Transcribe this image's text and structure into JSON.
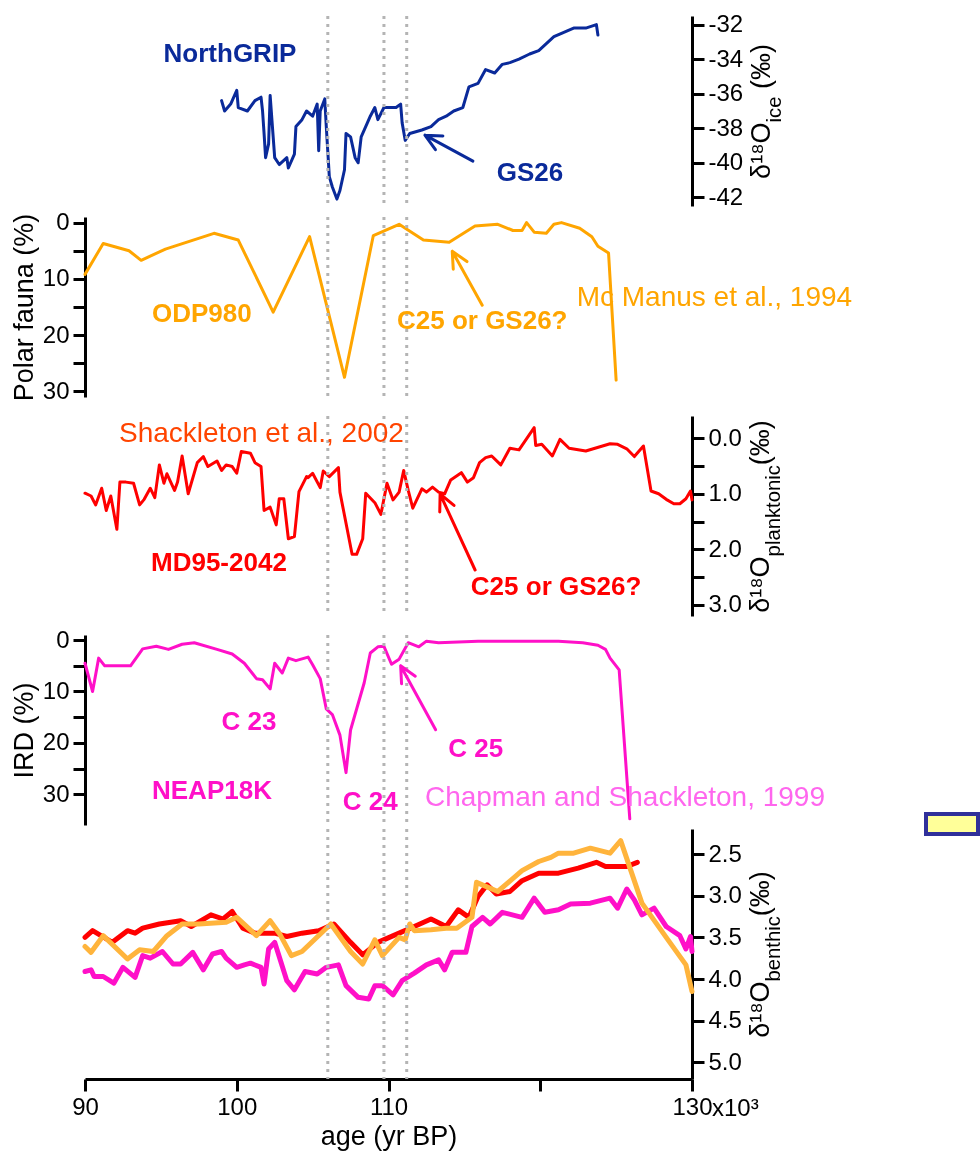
{
  "chart_data": [
    {
      "type": "line",
      "xlim": [
        90,
        130
      ],
      "y2lim": [
        -42.5,
        -31.5
      ],
      "y2ticks": [
        -32,
        -34,
        -36,
        -38,
        -40,
        -42
      ],
      "y2label": "δ¹⁸O$_{ice}$ (‰)",
      "tick_labels": "y",
      "series": [
        {
          "name": "NorthGRIP",
          "color": "#0a2a9a",
          "axis": "y2",
          "x": [
            99.0,
            99.2,
            99.6,
            100.0,
            100.1,
            100.7,
            101.2,
            101.6,
            101.7,
            101.8,
            101.9,
            102.1,
            102.2,
            102.4,
            102.5,
            102.8,
            103.3,
            103.4,
            103.8,
            103.9,
            104.3,
            104.6,
            105.0,
            105.3,
            105.4,
            105.5,
            105.8,
            105.9,
            106.1,
            106.3,
            106.6,
            106.8,
            107.1,
            107.2,
            107.5,
            107.8,
            108.0,
            108.2,
            108.6,
            108.8,
            109.1,
            109.3,
            109.7,
            110.1,
            110.5,
            110.8,
            110.9,
            111.1,
            111.4,
            112.2,
            112.8,
            113.3,
            113.8,
            114.3,
            114.9,
            115.3,
            115.9,
            116.4,
            117.0,
            117.5,
            118.0,
            118.6,
            119.3,
            119.9,
            120.4,
            120.9,
            121.4,
            122.2,
            123.0,
            123.7,
            123.8
          ],
          "values": [
            -36.4,
            -37.0,
            -36.6,
            -35.8,
            -36.8,
            -37.0,
            -36.4,
            -36.2,
            -37.0,
            -38.3,
            -39.7,
            -38.9,
            -36.1,
            -38.5,
            -39.7,
            -40.1,
            -39.7,
            -40.3,
            -39.5,
            -37.9,
            -37.5,
            -37.0,
            -37.3,
            -36.6,
            -39.3,
            -37.0,
            -36.3,
            -37.9,
            -40.8,
            -41.4,
            -42.1,
            -41.6,
            -40.4,
            -38.3,
            -38.5,
            -39.7,
            -40.0,
            -38.5,
            -37.7,
            -37.3,
            -36.8,
            -37.5,
            -36.8,
            -36.8,
            -36.8,
            -36.6,
            -37.7,
            -38.7,
            -38.3,
            -38.1,
            -37.9,
            -37.5,
            -37.3,
            -37.0,
            -36.8,
            -35.6,
            -35.4,
            -34.6,
            -34.8,
            -34.3,
            -34.2,
            -34.0,
            -33.7,
            -33.5,
            -33.1,
            -32.7,
            -32.5,
            -32.2,
            -32.2,
            -32.0,
            -32.6
          ]
        }
      ],
      "ref_lines": [
        {
          "axis": "x",
          "value": 106.0,
          "color": "#b4b4b4",
          "line_style": "dotted"
        },
        {
          "axis": "x",
          "value": 109.7,
          "color": "#b4b4b4",
          "line_style": "dotted"
        },
        {
          "axis": "x",
          "value": 111.2,
          "color": "#b4b4b4",
          "line_style": "dotted"
        }
      ],
      "annotations": [
        "GS26"
      ]
    },
    {
      "type": "line",
      "xlim": [
        90,
        130
      ],
      "ylim": [
        31,
        -1
      ],
      "yticks": [
        0,
        {
          "value": 5,
          "label": null
        },
        10,
        {
          "value": 15,
          "label": null
        },
        20,
        {
          "value": 25,
          "label": null
        },
        30
      ],
      "ylabel": "Polar fauna (%)",
      "tick_labels": "y",
      "series": [
        {
          "name": "ODP980",
          "color": "#ffa500",
          "x": [
            90.0,
            91.2,
            92.9,
            93.7,
            95.3,
            98.5,
            100.1,
            102.4,
            104.8,
            107.1,
            109.0,
            110.7,
            112.3,
            114.0,
            115.7,
            117.2,
            118.2,
            118.8,
            119.1,
            119.6,
            120.4,
            120.9,
            121.4,
            122.6,
            123.4,
            123.8,
            124.5,
            125.0
          ],
          "values": [
            9.2,
            3.7,
            5.0,
            6.7,
            4.7,
            1.9,
            3.1,
            15.9,
            2.5,
            27.5,
            2.3,
            0.3,
            3.1,
            3.5,
            0.6,
            0.3,
            1.4,
            1.4,
            0.0,
            1.7,
            1.9,
            0.3,
            0.0,
            1.0,
            2.5,
            4.2,
            5.4,
            28.0
          ]
        }
      ],
      "ref_lines": [
        {
          "axis": "x",
          "value": 106.0,
          "color": "#b4b4b4",
          "line_style": "dotted"
        },
        {
          "axis": "x",
          "value": 109.7,
          "color": "#b4b4b4",
          "line_style": "dotted"
        },
        {
          "axis": "x",
          "value": 111.2,
          "color": "#b4b4b4",
          "line_style": "dotted"
        }
      ],
      "annotations": [
        "C25 or GS26?",
        "Mc Manus et al., 1994"
      ]
    },
    {
      "type": "line",
      "xlim": [
        90,
        130
      ],
      "y2lim": [
        3.2,
        -0.4
      ],
      "y2ticks": [
        {
          "value": 0,
          "label": "0.0"
        },
        {
          "value": 0.5,
          "label": null
        },
        {
          "value": 1,
          "label": "1.0"
        },
        {
          "value": 1.5,
          "label": null
        },
        {
          "value": 2,
          "label": "2.0"
        },
        {
          "value": 2.5,
          "label": null
        },
        {
          "value": 3,
          "label": "3.0"
        }
      ],
      "y2label": "δ¹⁸O$_{planktonic}$(‰)",
      "tick_labels": "y",
      "series": [
        {
          "name": "MD95-2042",
          "color": "#ff0000",
          "axis": "y2",
          "x": [
            90.0,
            90.4,
            90.7,
            91.1,
            91.4,
            91.7,
            92.1,
            92.3,
            92.7,
            93.2,
            93.6,
            93.9,
            94.3,
            94.6,
            94.9,
            95.2,
            95.4,
            95.9,
            96.1,
            96.4,
            96.8,
            97.4,
            97.8,
            98.1,
            98.7,
            99.0,
            99.3,
            99.7,
            100.0,
            100.3,
            100.9,
            101.2,
            101.6,
            101.8,
            102.2,
            102.6,
            102.8,
            103.1,
            103.4,
            103.8,
            104.1,
            104.6,
            104.7,
            105.0,
            105.5,
            105.7,
            106.1,
            106.7,
            106.8,
            107.6,
            107.9,
            108.3,
            108.5,
            109.1,
            109.5,
            109.9,
            110.3,
            110.7,
            111.0,
            111.3,
            111.6,
            112.2,
            112.5,
            112.9,
            113.3,
            113.7,
            114.1,
            114.8,
            115.2,
            115.6,
            116.0,
            116.4,
            116.8,
            117.4,
            118.0,
            118.6,
            119.6,
            119.7,
            120.1,
            120.8,
            121.3,
            121.9,
            123.0,
            124.6,
            125.1,
            125.7,
            126.2,
            126.8,
            127.3,
            127.8,
            128.3,
            128.8,
            129.2,
            129.6,
            129.9,
            130.0
          ],
          "values": [
            0.99,
            1.04,
            1.2,
            0.9,
            1.3,
            1.04,
            1.64,
            0.79,
            0.79,
            0.81,
            1.2,
            1.1,
            0.9,
            1.07,
            0.48,
            0.81,
            0.64,
            0.94,
            0.79,
            0.32,
            1.0,
            0.44,
            0.33,
            0.51,
            0.41,
            0.58,
            0.48,
            0.51,
            0.63,
            0.24,
            0.27,
            0.44,
            0.51,
            1.3,
            1.24,
            1.56,
            1.09,
            1.09,
            1.81,
            1.77,
            0.96,
            0.69,
            0.71,
            0.63,
            0.89,
            0.59,
            0.69,
            0.53,
            0.97,
            2.09,
            2.09,
            1.81,
            0.99,
            1.16,
            1.37,
            0.81,
            1.11,
            0.97,
            0.58,
            0.94,
            1.26,
            0.91,
            0.97,
            0.88,
            0.97,
            1.0,
            0.75,
            0.62,
            0.79,
            0.71,
            0.44,
            0.35,
            0.32,
            0.48,
            0.18,
            0.21,
            -0.19,
            0.13,
            0.11,
            0.32,
            0.02,
            0.18,
            0.23,
            0.1,
            0.11,
            0.19,
            0.33,
            0.14,
            0.95,
            1.0,
            1.1,
            1.18,
            1.18,
            1.09,
            0.95,
            1.11
          ]
        }
      ],
      "ref_lines": [
        {
          "axis": "x",
          "value": 106.0,
          "color": "#b4b4b4",
          "line_style": "dotted"
        },
        {
          "axis": "x",
          "value": 109.7,
          "color": "#b4b4b4",
          "line_style": "dotted"
        },
        {
          "axis": "x",
          "value": 111.2,
          "color": "#b4b4b4",
          "line_style": "dotted"
        }
      ],
      "annotations": [
        "C25 or GS26?",
        "Shackleton et al., 2002"
      ]
    },
    {
      "type": "line",
      "xlim": [
        90,
        130
      ],
      "ylim": [
        36,
        -1
      ],
      "yticks": [
        0,
        {
          "value": 5,
          "label": null
        },
        10,
        {
          "value": 15,
          "label": null
        },
        20,
        {
          "value": 25,
          "label": null
        },
        30
      ],
      "ylabel": "IRD (%)",
      "tick_labels": "y",
      "series": [
        {
          "name": "NEAP18K",
          "color": "#ff10c8",
          "x": [
            90.0,
            90.5,
            90.9,
            91.3,
            93.0,
            93.8,
            94.7,
            95.5,
            96.4,
            97.2,
            98.7,
            99.7,
            100.5,
            101.3,
            101.7,
            102.2,
            102.5,
            103.0,
            103.4,
            103.9,
            104.7,
            105.0,
            105.5,
            105.9,
            106.3,
            106.8,
            107.2,
            107.5,
            108.4,
            108.8,
            109.3,
            109.7,
            110.2,
            110.7,
            111.3,
            112.0,
            112.5,
            113.3,
            115.9,
            121.2,
            122.8,
            123.8,
            124.3,
            124.6,
            125.2,
            125.9
          ],
          "values": [
            4.5,
            10.0,
            3.5,
            5.0,
            5.0,
            1.7,
            1.2,
            1.8,
            0.8,
            0.5,
            1.8,
            2.7,
            4.5,
            7.5,
            7.7,
            9.5,
            4.5,
            6.4,
            3.5,
            4.0,
            3.3,
            4.8,
            7.5,
            13.4,
            14.5,
            18.5,
            25.8,
            17.5,
            8.3,
            2.5,
            1.3,
            1.2,
            4.7,
            3.7,
            0.5,
            1.3,
            0.2,
            0.5,
            0.2,
            0.2,
            0.5,
            1.0,
            1.8,
            3.5,
            5.8,
            34.8
          ]
        }
      ],
      "ref_lines": [
        {
          "axis": "x",
          "value": 106.0,
          "color": "#b4b4b4",
          "line_style": "dotted"
        },
        {
          "axis": "x",
          "value": 109.7,
          "color": "#b4b4b4",
          "line_style": "dotted"
        },
        {
          "axis": "x",
          "value": 111.2,
          "color": "#b4b4b4",
          "line_style": "dotted"
        }
      ],
      "annotations": [
        "C 25",
        "C 23",
        "C 24",
        "Chapman and Shackleton, 1999"
      ]
    },
    {
      "type": "line",
      "xlim": [
        90,
        130
      ],
      "xticks": [
        90,
        100,
        110,
        {
          "value": 120,
          "label": null
        },
        130
      ],
      "xlabel": "age (yr BP)",
      "annotations": [
        "x10³"
      ],
      "y2lim": [
        5.2,
        2.2
      ],
      "y2ticks": [
        2.5,
        {
          "value": 3,
          "label": "3.0"
        },
        3.5,
        {
          "value": 4,
          "label": "4.0"
        },
        4.5,
        {
          "value": 5,
          "label": "5.0"
        }
      ],
      "y2label": "δ¹⁸O$_{benthic}$(‰)",
      "series": [
        {
          "color": "#ff0000",
          "axis": "y2",
          "x": [
            90.0,
            90.5,
            91.8,
            92.8,
            93.3,
            93.8,
            94.9,
            96.3,
            97.0,
            98.3,
            99.1,
            99.7,
            100.4,
            101.2,
            102.5,
            103.3,
            104.3,
            105.4,
            106.4,
            107.5,
            108.3,
            109.3,
            110.7,
            111.7,
            112.8,
            113.8,
            114.6,
            115.3,
            115.9,
            116.5,
            117.1,
            118.0,
            118.8,
            119.9,
            121.2,
            122.5,
            123.7,
            124.3,
            125.7,
            126.4
          ],
          "values": [
            3.5,
            3.42,
            3.56,
            3.42,
            3.45,
            3.39,
            3.34,
            3.3,
            3.37,
            3.23,
            3.28,
            3.19,
            3.39,
            3.45,
            3.45,
            3.49,
            3.45,
            3.42,
            3.34,
            3.56,
            3.71,
            3.56,
            3.45,
            3.37,
            3.28,
            3.37,
            3.17,
            3.26,
            3.01,
            2.87,
            2.98,
            2.95,
            2.82,
            2.73,
            2.73,
            2.67,
            2.6,
            2.65,
            2.65,
            2.6
          ]
        },
        {
          "color": "#ff10c8",
          "axis": "y2",
          "x": [
            90.0,
            90.4,
            90.6,
            91.2,
            91.9,
            92.5,
            93.3,
            93.8,
            94.3,
            95.1,
            95.8,
            96.3,
            97.1,
            97.8,
            98.4,
            99.0,
            99.3,
            100.0,
            100.5,
            100.9,
            101.6,
            101.8,
            102.1,
            102.5,
            103.3,
            103.8,
            104.5,
            105.3,
            105.9,
            106.7,
            107.2,
            108.0,
            108.7,
            109.1,
            109.6,
            110.3,
            110.9,
            111.7,
            112.5,
            113.3,
            113.7,
            114.2,
            115.1,
            115.5,
            116.2,
            116.7,
            117.5,
            118.8,
            119.6,
            120.3,
            121.2,
            122.0,
            123.3,
            124.6,
            125.1,
            125.7,
            126.2,
            126.7,
            127.5,
            128.3,
            129.2,
            129.6,
            129.9,
            130.0
          ],
          "values": [
            3.91,
            3.89,
            3.97,
            3.97,
            4.05,
            3.86,
            3.98,
            3.72,
            3.75,
            3.67,
            3.82,
            3.82,
            3.68,
            3.89,
            3.7,
            3.67,
            3.75,
            3.86,
            3.83,
            3.81,
            3.86,
            4.06,
            3.64,
            3.56,
            4.02,
            4.13,
            3.91,
            3.94,
            3.86,
            3.83,
            4.08,
            4.22,
            4.24,
            4.08,
            4.08,
            4.19,
            4.02,
            3.93,
            3.83,
            3.77,
            3.89,
            3.68,
            3.68,
            3.37,
            3.26,
            3.34,
            3.2,
            3.26,
            3.03,
            3.2,
            3.17,
            3.1,
            3.09,
            3.03,
            3.15,
            2.92,
            3.05,
            3.23,
            3.15,
            3.37,
            3.48,
            3.64,
            3.49,
            3.67
          ]
        },
        {
          "color": "#ffb43c",
          "axis": "y2",
          "x": [
            90.0,
            90.4,
            91.2,
            92.8,
            93.6,
            94.5,
            95.4,
            96.4,
            97.5,
            99.3,
            100.0,
            101.3,
            102.2,
            102.8,
            103.6,
            104.3,
            106.2,
            107.5,
            108.3,
            109.1,
            109.6,
            110.7,
            111.1,
            111.4,
            111.7,
            112.8,
            113.8,
            114.5,
            115.5,
            115.8,
            117.2,
            118.8,
            119.9,
            120.7,
            121.2,
            122.2,
            123.3,
            124.6,
            125.3,
            126.7,
            128.3,
            129.6,
            130.0
          ],
          "values": [
            3.61,
            3.68,
            3.48,
            3.76,
            3.65,
            3.67,
            3.48,
            3.34,
            3.34,
            3.32,
            3.26,
            3.48,
            3.3,
            3.45,
            3.72,
            3.67,
            3.34,
            3.67,
            3.82,
            3.53,
            3.72,
            3.5,
            3.53,
            3.34,
            3.42,
            3.41,
            3.39,
            3.39,
            3.26,
            2.84,
            2.95,
            2.7,
            2.59,
            2.54,
            2.49,
            2.49,
            2.43,
            2.49,
            2.34,
            3.09,
            3.5,
            3.83,
            4.15
          ]
        }
      ],
      "ref_lines": [
        {
          "axis": "x",
          "value": 106.0,
          "color": "#b4b4b4",
          "line_style": "dotted"
        },
        {
          "axis": "x",
          "value": 109.7,
          "color": "#b4b4b4",
          "line_style": "dotted"
        },
        {
          "axis": "x",
          "value": 111.2,
          "color": "#b4b4b4",
          "line_style": "dotted"
        }
      ]
    }
  ]
}
